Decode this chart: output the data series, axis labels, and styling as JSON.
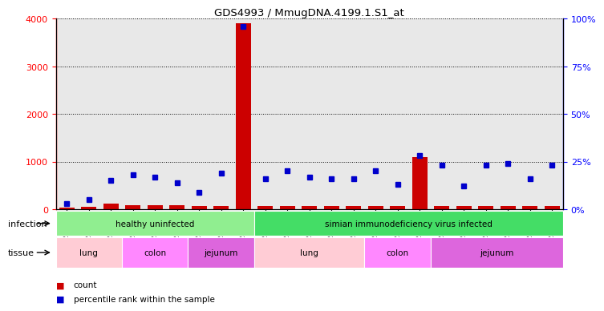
{
  "title": "GDS4993 / MmugDNA.4199.1.S1_at",
  "samples": [
    "GSM1249391",
    "GSM1249392",
    "GSM1249393",
    "GSM1249369",
    "GSM1249370",
    "GSM1249371",
    "GSM1249380",
    "GSM1249381",
    "GSM1249382",
    "GSM1249386",
    "GSM1249387",
    "GSM1249388",
    "GSM1249389",
    "GSM1249390",
    "GSM1249365",
    "GSM1249366",
    "GSM1249367",
    "GSM1249368",
    "GSM1249375",
    "GSM1249376",
    "GSM1249377",
    "GSM1249378",
    "GSM1249379"
  ],
  "counts": [
    30,
    50,
    120,
    80,
    80,
    80,
    60,
    60,
    3900,
    60,
    70,
    60,
    60,
    60,
    60,
    60,
    1100,
    60,
    60,
    60,
    60,
    60,
    60
  ],
  "percentiles": [
    3,
    5,
    15,
    18,
    17,
    14,
    9,
    19,
    96,
    16,
    20,
    17,
    16,
    16,
    20,
    13,
    28,
    23,
    12,
    23,
    24,
    16,
    23
  ],
  "bar_color": "#cc0000",
  "dot_color": "#0000cc",
  "ylim_left": [
    0,
    4000
  ],
  "ylim_right": [
    0,
    100
  ],
  "yticks_left": [
    0,
    1000,
    2000,
    3000,
    4000
  ],
  "yticks_right": [
    0,
    25,
    50,
    75,
    100
  ],
  "ytick_labels_right": [
    "0%",
    "25%",
    "50%",
    "75%",
    "100%"
  ],
  "infection_groups": [
    {
      "label": "healthy uninfected",
      "start": 0,
      "end": 9,
      "color": "#90ee90"
    },
    {
      "label": "simian immunodeficiency virus infected",
      "start": 9,
      "end": 23,
      "color": "#44dd66"
    }
  ],
  "tissue_groups": [
    {
      "label": "lung",
      "start": 0,
      "end": 3,
      "color": "#ffccd5"
    },
    {
      "label": "colon",
      "start": 3,
      "end": 6,
      "color": "#ff88ff"
    },
    {
      "label": "jejunum",
      "start": 6,
      "end": 9,
      "color": "#dd66dd"
    },
    {
      "label": "lung",
      "start": 9,
      "end": 14,
      "color": "#ffccd5"
    },
    {
      "label": "colon",
      "start": 14,
      "end": 17,
      "color": "#ff88ff"
    },
    {
      "label": "jejunum",
      "start": 17,
      "end": 23,
      "color": "#dd66dd"
    }
  ],
  "legend_count_color": "#cc0000",
  "legend_pct_color": "#0000cc",
  "plot_bg_color": "#e8e8e8",
  "infection_label": "infection",
  "tissue_label": "tissue",
  "legend_count_label": "count",
  "legend_pct_label": "percentile rank within the sample"
}
